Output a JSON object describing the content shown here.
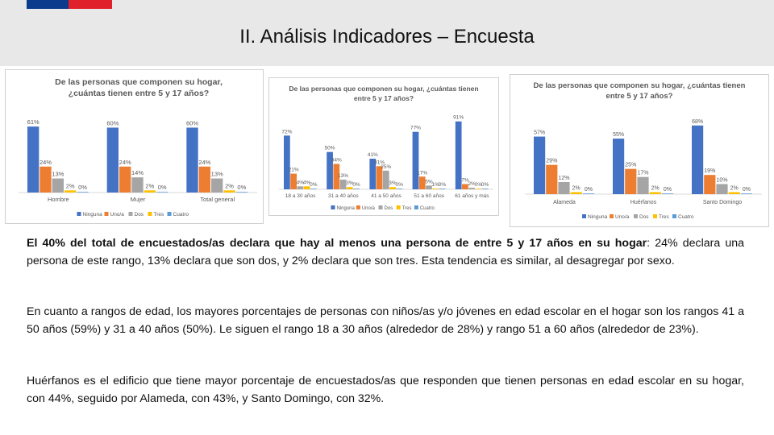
{
  "slide": {
    "title": "II. Análisis Indicadores – Encuesta"
  },
  "colors": {
    "header_band": "#e8e8e8",
    "flag_blue": "#0b3b8c",
    "flag_red": "#e0202b",
    "series": [
      "#4472c4",
      "#ed7d31",
      "#a5a5a5",
      "#ffc000",
      "#5b9bd5"
    ]
  },
  "paragraphs": {
    "p1_bold": "El 40% del total de encuestados/as declara que hay al menos una persona de entre 5 y 17 años en su hogar",
    "p1_rest": ": 24% declara una persona de este rango, 13% declara que son dos, y 2% declara que son tres. Esta tendencia es similar, al desagregar por sexo.",
    "p2": "En cuanto a rangos de edad, los mayores porcentajes de personas con niños/as y/o jóvenes en edad escolar en el hogar son los rangos 41 a 50 años (59%) y 31 a 40 años (50%). Le siguen el rango 18 a 30 años (alrededor de 28%) y rango 51 a 60 años (alrededor de 23%).",
    "p3": "Huérfanos es el edificio que tiene mayor porcentaje de encuestados/as que responden que tienen personas en edad escolar en su hogar, con 44%, seguido por Alameda, con 43%, y Santo Domingo, con 32%."
  },
  "chart_data": [
    {
      "type": "bar",
      "title_lines": [
        "De las personas que componen su hogar,",
        "¿cuántas tienen entre 5 y 17 años?"
      ],
      "categories": [
        "Hombre",
        "Mujer",
        "Total general"
      ],
      "series": [
        {
          "name": "Ninguna",
          "values": [
            61,
            60,
            60
          ]
        },
        {
          "name": "Uno/a",
          "values": [
            24,
            24,
            24
          ]
        },
        {
          "name": "Dos",
          "values": [
            13,
            14,
            13
          ]
        },
        {
          "name": "Tres",
          "values": [
            2,
            2,
            2
          ]
        },
        {
          "name": "Cuatro",
          "values": [
            0,
            0,
            0
          ]
        }
      ],
      "ylim": [
        0,
        70
      ],
      "legend": "bottom"
    },
    {
      "type": "bar",
      "title_lines": [
        "De las personas que componen su hogar, ¿cuántas tienen",
        "entre 5 y 17 años?"
      ],
      "categories": [
        "18 a 30 años",
        "31 a 40 años",
        "41 a 50 años",
        "51 a 60 años",
        "61 años y más"
      ],
      "series": [
        {
          "name": "Ninguna",
          "values": [
            72,
            50,
            41,
            77,
            91
          ]
        },
        {
          "name": "Uno/a",
          "values": [
            21,
            34,
            31,
            17,
            7
          ]
        },
        {
          "name": "Dos",
          "values": [
            4,
            13,
            25,
            5,
            2
          ]
        },
        {
          "name": "Tres",
          "values": [
            4,
            3,
            3,
            1,
            0
          ]
        },
        {
          "name": "Cuatro",
          "values": [
            0,
            0,
            0,
            0,
            0
          ]
        }
      ],
      "ylim": [
        0,
        95
      ],
      "legend": "bottom"
    },
    {
      "type": "bar",
      "title_lines": [
        "De las personas que componen su hogar, ¿cuántas tienen",
        "entre 5 y 17 años?"
      ],
      "categories": [
        "Alameda",
        "Huérfanos",
        "Santo Domingo"
      ],
      "series": [
        {
          "name": "Ninguna",
          "values": [
            57,
            55,
            68
          ]
        },
        {
          "name": "Uno/a",
          "values": [
            29,
            25,
            19
          ]
        },
        {
          "name": "Dos",
          "values": [
            12,
            17,
            10
          ]
        },
        {
          "name": "Tres",
          "values": [
            2,
            2,
            2
          ]
        },
        {
          "name": "Cuatro",
          "values": [
            0,
            0,
            0
          ]
        }
      ],
      "ylim": [
        0,
        75
      ],
      "legend": "bottom"
    }
  ]
}
